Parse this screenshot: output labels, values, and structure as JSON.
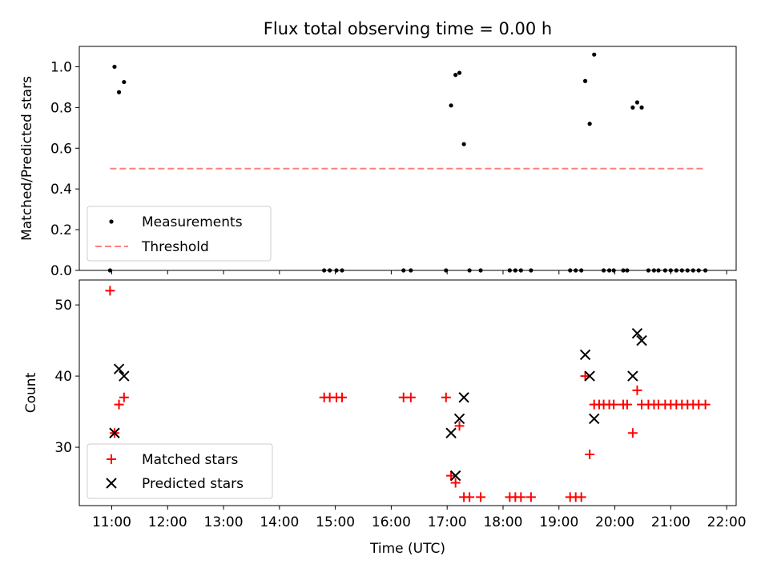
{
  "chart_data": [
    {
      "type": "scatter",
      "title": "Flux total observing time = 0.00 h",
      "ylabel": "Matched/Predicted stars",
      "xlabel": "",
      "x_unit": "hours (UTC)",
      "xlim": [
        10.42,
        22.17
      ],
      "ylim": [
        0.0,
        1.1
      ],
      "yticks": [
        0.0,
        0.2,
        0.4,
        0.6,
        0.8,
        1.0
      ],
      "ytick_labels": [
        "0.0",
        "0.2",
        "0.4",
        "0.6",
        "0.8",
        "1.0"
      ],
      "legend_position": "lower-left",
      "series": [
        {
          "name": "Measurements",
          "marker": "dot",
          "color": "#000000",
          "points": [
            [
              10.97,
              0.0
            ],
            [
              11.05,
              1.0
            ],
            [
              11.13,
              0.875
            ],
            [
              11.22,
              0.925
            ],
            [
              14.8,
              0.0
            ],
            [
              14.9,
              0.0
            ],
            [
              15.02,
              0.0
            ],
            [
              15.12,
              0.0
            ],
            [
              16.22,
              0.0
            ],
            [
              16.35,
              0.0
            ],
            [
              16.98,
              0.0
            ],
            [
              17.07,
              0.81
            ],
            [
              17.15,
              0.96
            ],
            [
              17.22,
              0.97
            ],
            [
              17.3,
              0.62
            ],
            [
              17.4,
              0.0
            ],
            [
              17.6,
              0.0
            ],
            [
              18.12,
              0.0
            ],
            [
              18.22,
              0.0
            ],
            [
              18.32,
              0.0
            ],
            [
              18.5,
              0.0
            ],
            [
              19.2,
              0.0
            ],
            [
              19.3,
              0.0
            ],
            [
              19.4,
              0.0
            ],
            [
              19.47,
              0.93
            ],
            [
              19.55,
              0.72
            ],
            [
              19.63,
              1.06
            ],
            [
              19.8,
              0.0
            ],
            [
              19.9,
              0.0
            ],
            [
              19.98,
              0.0
            ],
            [
              20.15,
              0.0
            ],
            [
              20.22,
              0.0
            ],
            [
              20.32,
              0.8
            ],
            [
              20.4,
              0.825
            ],
            [
              20.48,
              0.8
            ],
            [
              20.6,
              0.0
            ],
            [
              20.7,
              0.0
            ],
            [
              20.78,
              0.0
            ],
            [
              20.9,
              0.0
            ],
            [
              21.0,
              0.0
            ],
            [
              21.1,
              0.0
            ],
            [
              21.2,
              0.0
            ],
            [
              21.3,
              0.0
            ],
            [
              21.4,
              0.0
            ],
            [
              21.5,
              0.0
            ],
            [
              21.62,
              0.0
            ]
          ]
        },
        {
          "name": "Threshold",
          "marker": "dashed-line",
          "color": "#ff8080",
          "points": [
            [
              10.97,
              0.5
            ],
            [
              21.62,
              0.5
            ]
          ]
        }
      ]
    },
    {
      "type": "scatter",
      "title": "",
      "ylabel": "Count",
      "xlabel": "Time (UTC)",
      "x_unit": "hours (UTC)",
      "xlim": [
        10.42,
        22.17
      ],
      "ylim": [
        21.8,
        53.5
      ],
      "yticks": [
        30,
        40,
        50
      ],
      "ytick_labels": [
        "30",
        "40",
        "50"
      ],
      "xticks": [
        11,
        12,
        13,
        14,
        15,
        16,
        17,
        18,
        19,
        20,
        21,
        22
      ],
      "xtick_labels": [
        "11:00",
        "12:00",
        "13:00",
        "14:00",
        "15:00",
        "16:00",
        "17:00",
        "18:00",
        "19:00",
        "20:00",
        "21:00",
        "22:00"
      ],
      "legend_position": "lower-left",
      "series": [
        {
          "name": "Matched stars",
          "marker": "plus",
          "color": "#ff0000",
          "points": [
            [
              10.97,
              52
            ],
            [
              11.05,
              32
            ],
            [
              11.13,
              36
            ],
            [
              11.22,
              37
            ],
            [
              14.8,
              37
            ],
            [
              14.9,
              37
            ],
            [
              15.02,
              37
            ],
            [
              15.12,
              37
            ],
            [
              16.22,
              37
            ],
            [
              16.35,
              37
            ],
            [
              16.98,
              37
            ],
            [
              17.07,
              26
            ],
            [
              17.15,
              25
            ],
            [
              17.22,
              33
            ],
            [
              17.3,
              23
            ],
            [
              17.4,
              23
            ],
            [
              17.6,
              23
            ],
            [
              18.12,
              23
            ],
            [
              18.22,
              23
            ],
            [
              18.32,
              23
            ],
            [
              18.5,
              23
            ],
            [
              19.2,
              23
            ],
            [
              19.3,
              23
            ],
            [
              19.4,
              23
            ],
            [
              19.47,
              40
            ],
            [
              19.55,
              29
            ],
            [
              19.63,
              36
            ],
            [
              19.72,
              36
            ],
            [
              19.8,
              36
            ],
            [
              19.9,
              36
            ],
            [
              19.98,
              36
            ],
            [
              20.15,
              36
            ],
            [
              20.22,
              36
            ],
            [
              20.32,
              32
            ],
            [
              20.4,
              38
            ],
            [
              20.48,
              36
            ],
            [
              20.6,
              36
            ],
            [
              20.7,
              36
            ],
            [
              20.78,
              36
            ],
            [
              20.9,
              36
            ],
            [
              21.0,
              36
            ],
            [
              21.1,
              36
            ],
            [
              21.2,
              36
            ],
            [
              21.3,
              36
            ],
            [
              21.4,
              36
            ],
            [
              21.5,
              36
            ],
            [
              21.62,
              36
            ]
          ]
        },
        {
          "name": "Predicted stars",
          "marker": "x",
          "color": "#000000",
          "points": [
            [
              11.05,
              32
            ],
            [
              11.13,
              41
            ],
            [
              11.22,
              40
            ],
            [
              17.07,
              32
            ],
            [
              17.15,
              26
            ],
            [
              17.22,
              34
            ],
            [
              17.3,
              37
            ],
            [
              19.47,
              43
            ],
            [
              19.55,
              40
            ],
            [
              19.63,
              34
            ],
            [
              20.32,
              40
            ],
            [
              20.4,
              46
            ],
            [
              20.48,
              45
            ]
          ]
        }
      ]
    }
  ]
}
